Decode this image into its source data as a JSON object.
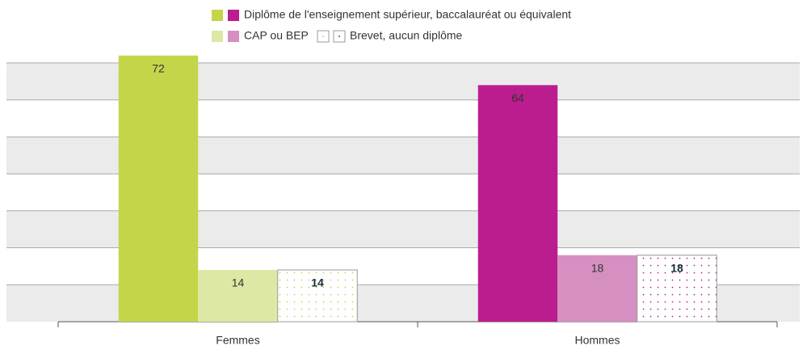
{
  "chart_data": {
    "type": "bar",
    "categories": [
      "Femmes",
      "Hommes"
    ],
    "series": [
      {
        "name": "Diplôme de l'enseignement supérieur, baccalauréat ou équivalent",
        "colors": [
          "#c5d54a",
          "#bb1d8f"
        ],
        "values": [
          72,
          64
        ]
      },
      {
        "name": "CAP ou BEP",
        "colors": [
          "#dce8a3",
          "#d68fc1"
        ],
        "values": [
          14,
          18
        ]
      },
      {
        "name": "Brevet, aucun diplôme",
        "colors": [
          "#c5d54a",
          "#bb1d8f"
        ],
        "pattern": "dots",
        "values": [
          14,
          18
        ]
      }
    ],
    "ylim": [
      0,
      75
    ],
    "yticks": [
      0,
      10,
      20,
      30,
      40,
      50,
      60,
      70
    ],
    "grid": true
  }
}
